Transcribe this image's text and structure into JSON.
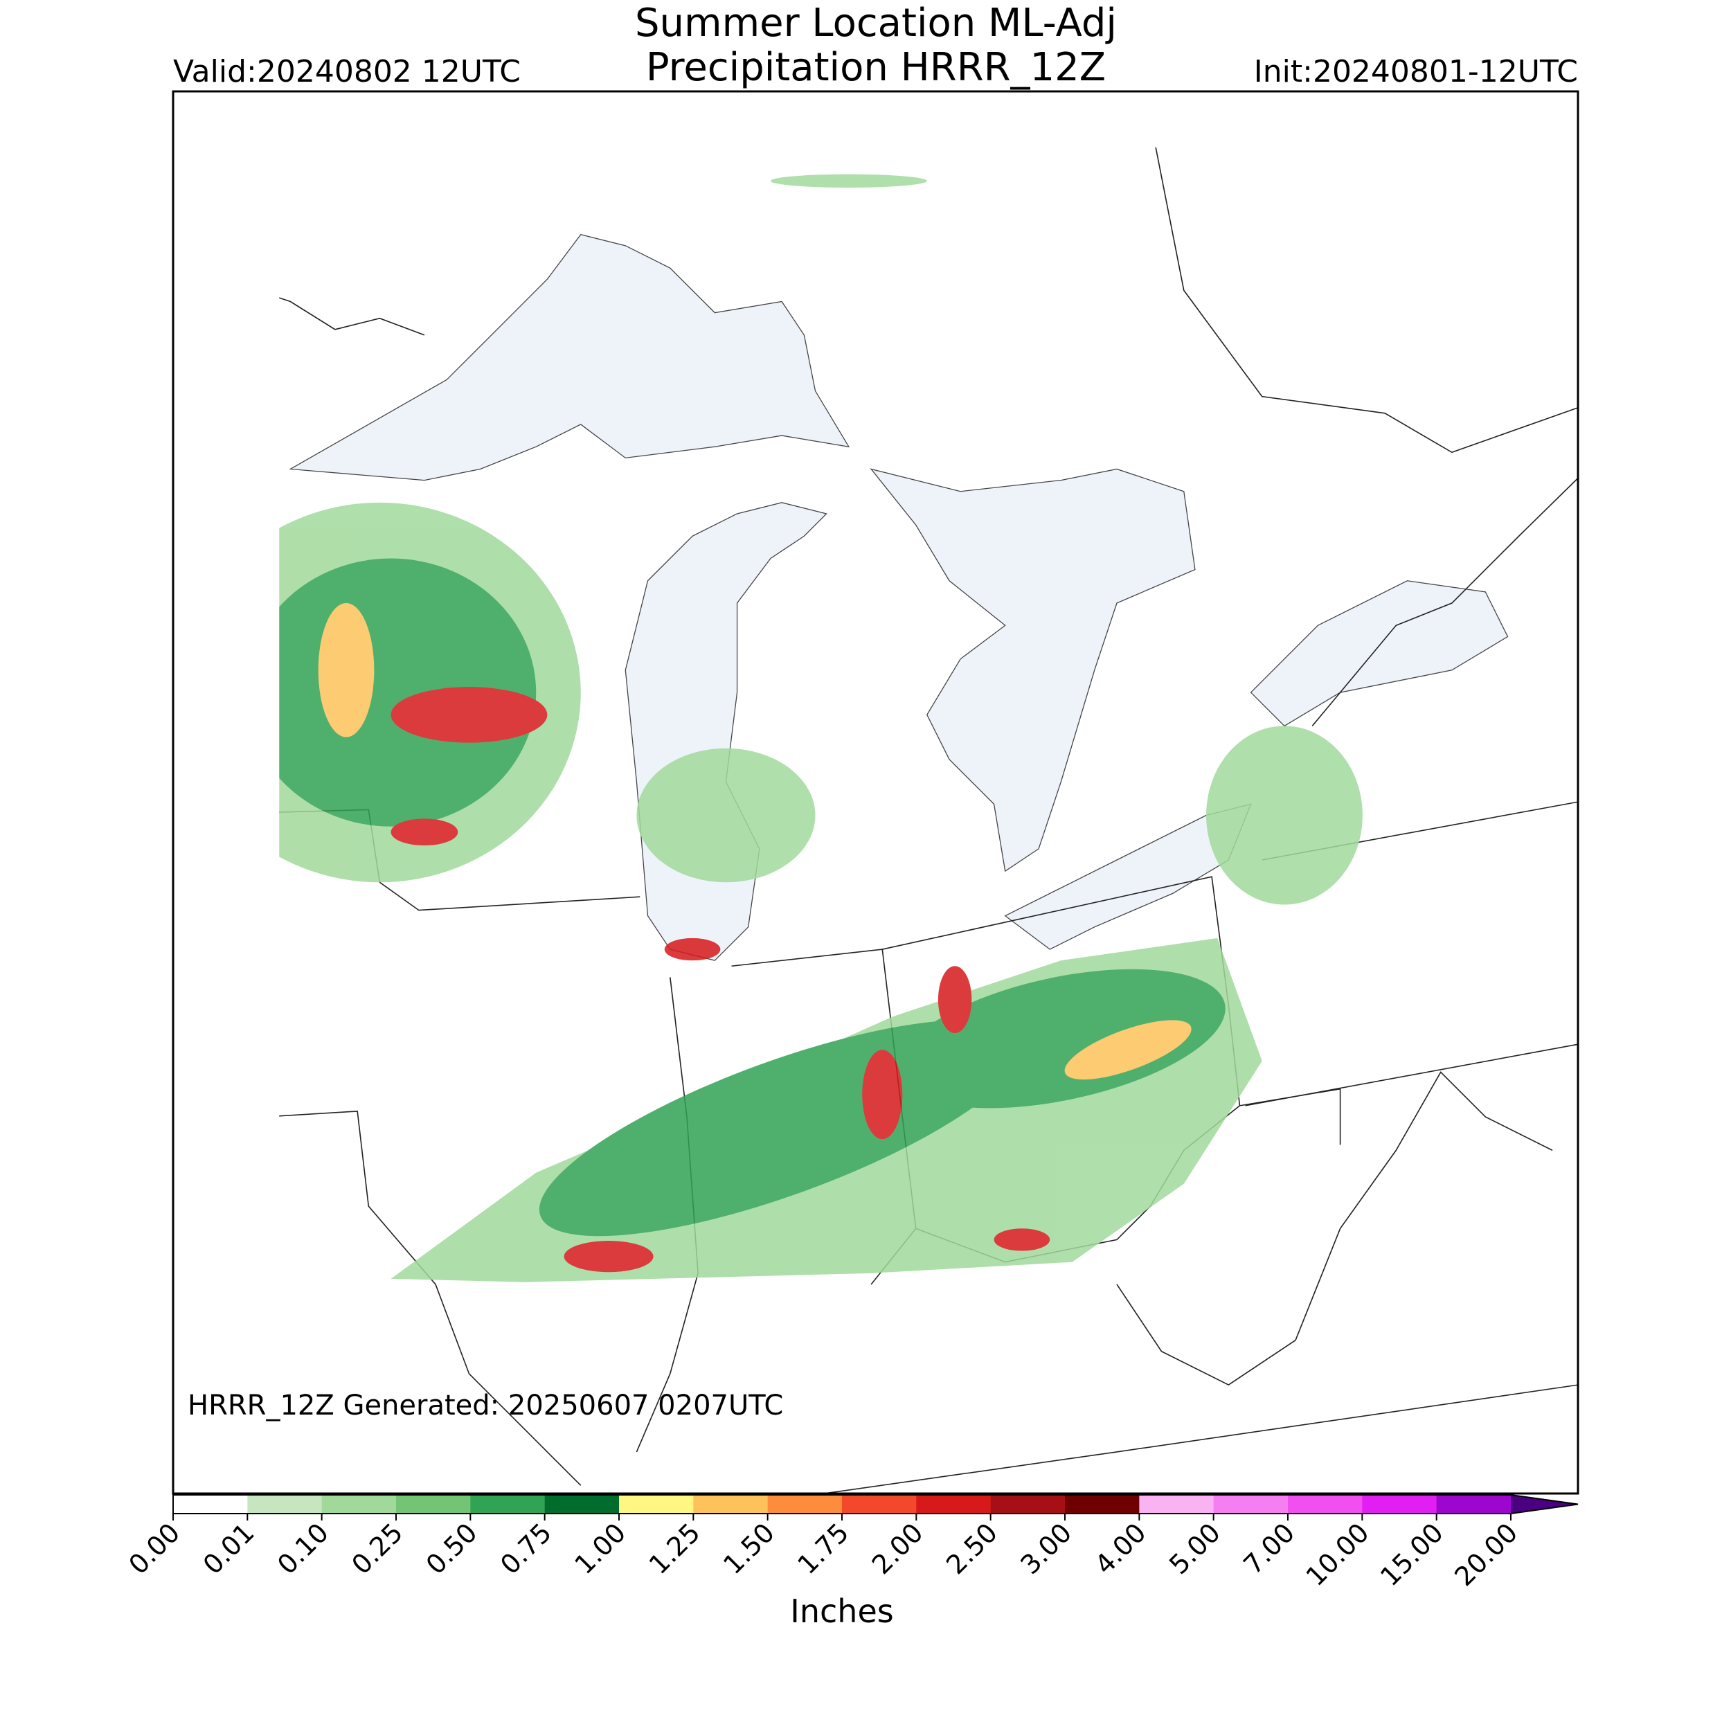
{
  "header": {
    "title_line1": "Summer Location ML-Adj",
    "title_line2": "Precipitation HRRR_12Z",
    "valid": "Valid:20240802 12UTC",
    "init": "Init:20240801-12UTC"
  },
  "note": "HRRR_12Z Generated: 20250607 0207UTC",
  "colorbar": {
    "label": "Inches",
    "ticks": [
      {
        "value": 0,
        "label": "0.00"
      },
      {
        "value": 0.01,
        "label": "0.01"
      },
      {
        "value": 0.1,
        "label": "0.10"
      },
      {
        "value": 0.25,
        "label": "0.25"
      },
      {
        "value": 0.5,
        "label": "0.50"
      },
      {
        "value": 0.75,
        "label": "0.75"
      },
      {
        "value": 1,
        "label": "1.00"
      },
      {
        "value": 1.25,
        "label": "1.25"
      },
      {
        "value": 1.5,
        "label": "1.50"
      },
      {
        "value": 1.75,
        "label": "1.75"
      },
      {
        "value": 2,
        "label": "2.00"
      },
      {
        "value": 2.5,
        "label": "2.50"
      },
      {
        "value": 3,
        "label": "3.00"
      },
      {
        "value": 4,
        "label": "4.00"
      },
      {
        "value": 5,
        "label": "5.00"
      },
      {
        "value": 7,
        "label": "7.00"
      },
      {
        "value": 10,
        "label": "10.00"
      },
      {
        "value": 15,
        "label": "15.00"
      },
      {
        "value": 20,
        "label": "20.00"
      }
    ],
    "colors": [
      "#ffffff",
      "#c7e6c0",
      "#a1d99b",
      "#74c476",
      "#31a354",
      "#006d2c",
      "#fff782",
      "#fdc35a",
      "#fd8d3c",
      "#f3492a",
      "#d7191c",
      "#a50f15",
      "#6e0000",
      "#f9b3f2",
      "#f57ef2",
      "#f24ff0",
      "#e11ff2",
      "#9c06cf"
    ],
    "extend_color": "#4b0082"
  }
}
